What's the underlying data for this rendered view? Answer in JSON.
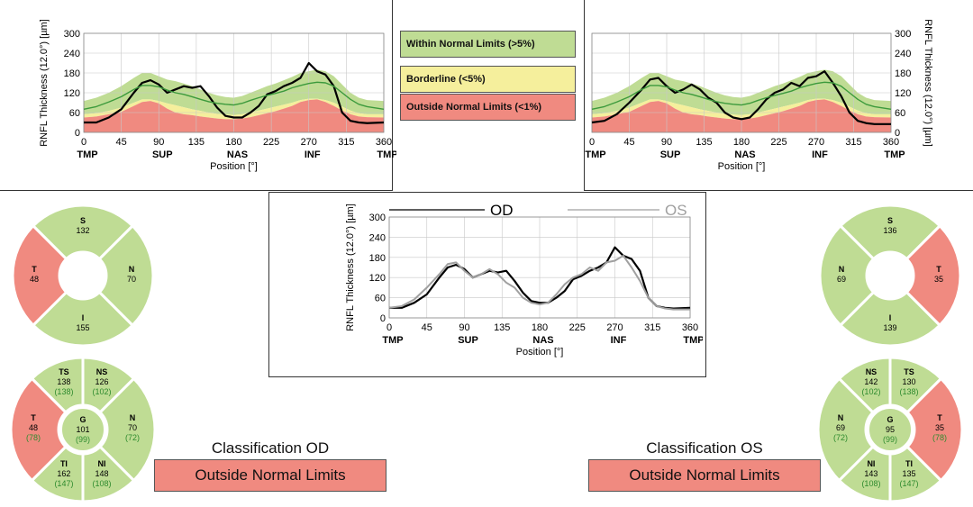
{
  "legend": {
    "within": "Within Normal Limits (>5%)",
    "borderline": "Borderline (<5%)",
    "outside": "Outside Normal Limits (<1%)"
  },
  "colors": {
    "within": "#bfdc94",
    "borderline": "#f5ef9c",
    "outside": "#f08a80",
    "od_line": "#000000",
    "os_line": "#a0a0a0",
    "normal_line": "#3c9a3c"
  },
  "classification": {
    "od_title": "Classification OD",
    "od_value": "Outside Normal Limits",
    "os_title": "Classification OS",
    "os_value": "Outside Normal Limits"
  },
  "chart_data": [
    {
      "type": "line",
      "eye": "OD",
      "ylabel": "RNFL Thickness (12.0°) [µm]",
      "xlabel": "Position [°]",
      "xlim": [
        0,
        360
      ],
      "ylim": [
        0,
        300
      ],
      "x_ticks": [
        0,
        45,
        90,
        135,
        180,
        225,
        270,
        315,
        360
      ],
      "y_ticks": [
        0,
        60,
        120,
        180,
        240,
        300
      ],
      "sector_labels": [
        "TMP",
        "SUP",
        "NAS",
        "INF",
        "TMP"
      ],
      "sector_positions": [
        0,
        90,
        180,
        270,
        360
      ],
      "grid": true,
      "x": [
        0,
        15,
        30,
        45,
        60,
        70,
        80,
        90,
        100,
        110,
        120,
        130,
        140,
        150,
        160,
        170,
        180,
        190,
        200,
        210,
        220,
        230,
        240,
        250,
        260,
        270,
        280,
        290,
        300,
        310,
        320,
        330,
        340,
        360
      ],
      "series": [
        {
          "values": [
            30,
            30,
            45,
            70,
            120,
            150,
            158,
            145,
            120,
            130,
            140,
            135,
            140,
            110,
            75,
            50,
            45,
            45,
            60,
            80,
            115,
            125,
            140,
            150,
            165,
            210,
            185,
            175,
            140,
            60,
            35,
            30,
            28,
            30
          ]
        },
        {
          "values": [
            70,
            78,
            92,
            108,
            130,
            142,
            142,
            138,
            128,
            120,
            115,
            108,
            100,
            93,
            88,
            85,
            83,
            88,
            97,
            105,
            112,
            118,
            125,
            135,
            142,
            148,
            152,
            150,
            140,
            120,
            100,
            85,
            78,
            70
          ]
        }
      ],
      "bands": {
        "within_upper": [
          95,
          105,
          120,
          140,
          165,
          180,
          180,
          170,
          160,
          155,
          148,
          140,
          130,
          120,
          112,
          107,
          105,
          110,
          120,
          130,
          140,
          148,
          158,
          168,
          180,
          185,
          190,
          185,
          170,
          145,
          120,
          105,
          98,
          95
        ],
        "borderline_upper": [
          55,
          58,
          65,
          75,
          90,
          100,
          100,
          95,
          88,
          82,
          76,
          70,
          65,
          60,
          56,
          54,
          53,
          55,
          60,
          66,
          72,
          78,
          84,
          90,
          98,
          102,
          102,
          98,
          90,
          78,
          66,
          58,
          55,
          55
        ],
        "outside_upper": [
          45,
          48,
          55,
          62,
          80,
          92,
          95,
          88,
          72,
          60,
          55,
          52,
          48,
          45,
          42,
          40,
          40,
          42,
          46,
          52,
          58,
          64,
          72,
          80,
          92,
          98,
          100,
          92,
          80,
          66,
          55,
          48,
          46,
          45
        ]
      }
    },
    {
      "type": "line",
      "eye": "OS",
      "ylabel": "RNFL Thickness (12.0°) [µm]",
      "xlabel": "Position [°]",
      "xlim": [
        0,
        360
      ],
      "ylim": [
        0,
        300
      ],
      "x_ticks": [
        0,
        45,
        90,
        135,
        180,
        225,
        270,
        315,
        360
      ],
      "y_ticks": [
        0,
        60,
        120,
        180,
        240,
        300
      ],
      "sector_labels": [
        "TMP",
        "SUP",
        "NAS",
        "INF",
        "TMP"
      ],
      "sector_positions": [
        0,
        90,
        180,
        270,
        360
      ],
      "grid": true,
      "x": [
        0,
        15,
        30,
        45,
        60,
        70,
        80,
        90,
        100,
        110,
        120,
        130,
        140,
        150,
        160,
        170,
        180,
        190,
        200,
        210,
        220,
        230,
        240,
        250,
        260,
        270,
        280,
        290,
        300,
        310,
        320,
        330,
        340,
        360
      ],
      "series": [
        {
          "values": [
            30,
            35,
            55,
            90,
            130,
            160,
            165,
            140,
            120,
            130,
            145,
            130,
            105,
            90,
            60,
            45,
            40,
            45,
            70,
            100,
            120,
            130,
            150,
            140,
            165,
            170,
            185,
            150,
            110,
            60,
            35,
            28,
            25,
            25
          ]
        },
        {
          "values": [
            70,
            78,
            92,
            108,
            130,
            142,
            142,
            138,
            128,
            120,
            115,
            108,
            100,
            93,
            88,
            85,
            83,
            88,
            97,
            105,
            112,
            118,
            125,
            135,
            142,
            148,
            152,
            150,
            140,
            120,
            100,
            85,
            78,
            70
          ]
        }
      ],
      "bands": {
        "within_upper": [
          95,
          105,
          120,
          140,
          165,
          180,
          180,
          170,
          160,
          155,
          148,
          140,
          130,
          120,
          112,
          107,
          105,
          110,
          120,
          130,
          140,
          148,
          158,
          168,
          180,
          185,
          190,
          185,
          170,
          145,
          120,
          105,
          98,
          95
        ],
        "borderline_upper": [
          55,
          58,
          65,
          75,
          90,
          100,
          100,
          95,
          88,
          82,
          76,
          70,
          65,
          60,
          56,
          54,
          53,
          55,
          60,
          66,
          72,
          78,
          84,
          90,
          98,
          102,
          102,
          98,
          90,
          78,
          66,
          58,
          55,
          55
        ],
        "outside_upper": [
          45,
          48,
          55,
          62,
          80,
          92,
          95,
          88,
          72,
          60,
          55,
          52,
          48,
          45,
          42,
          40,
          40,
          42,
          46,
          52,
          58,
          64,
          72,
          80,
          92,
          98,
          100,
          92,
          80,
          66,
          55,
          48,
          46,
          45
        ]
      }
    },
    {
      "type": "line",
      "eye": "OD/OS",
      "ylabel": "RNFL Thickness (12.0°) [µm]",
      "xlabel": "Position [°]",
      "xlim": [
        0,
        360
      ],
      "ylim": [
        0,
        300
      ],
      "x_ticks": [
        0,
        45,
        90,
        135,
        180,
        225,
        270,
        315,
        360
      ],
      "y_ticks": [
        0,
        60,
        120,
        180,
        240,
        300
      ],
      "sector_labels": [
        "TMP",
        "SUP",
        "NAS",
        "INF",
        "TMP"
      ],
      "sector_positions": [
        0,
        90,
        180,
        270,
        360
      ],
      "grid": true,
      "x": [
        0,
        15,
        30,
        45,
        60,
        70,
        80,
        90,
        100,
        110,
        120,
        130,
        140,
        150,
        160,
        170,
        180,
        190,
        200,
        210,
        220,
        230,
        240,
        250,
        260,
        270,
        280,
        290,
        300,
        310,
        320,
        330,
        340,
        360
      ],
      "series": [
        {
          "name": "OD",
          "values": [
            30,
            30,
            45,
            70,
            120,
            150,
            158,
            145,
            120,
            130,
            140,
            135,
            140,
            110,
            75,
            50,
            45,
            45,
            60,
            80,
            115,
            125,
            140,
            150,
            165,
            210,
            185,
            175,
            140,
            60,
            35,
            30,
            28,
            30
          ]
        },
        {
          "name": "OS",
          "values": [
            30,
            35,
            55,
            90,
            130,
            160,
            165,
            140,
            120,
            130,
            145,
            130,
            105,
            90,
            60,
            45,
            40,
            45,
            70,
            100,
            120,
            130,
            150,
            140,
            165,
            170,
            185,
            150,
            110,
            60,
            35,
            28,
            25,
            25
          ]
        }
      ]
    }
  ],
  "sectors_od_quadrant": {
    "s": {
      "label": "S",
      "value": "132",
      "status": "within"
    },
    "n": {
      "label": "N",
      "value": "70",
      "status": "within"
    },
    "i": {
      "label": "I",
      "value": "155",
      "status": "within"
    },
    "t": {
      "label": "T",
      "value": "48",
      "status": "outside"
    }
  },
  "sectors_os_quadrant": {
    "s": {
      "label": "S",
      "value": "136",
      "status": "within"
    },
    "n": {
      "label": "N",
      "value": "69",
      "status": "within"
    },
    "i": {
      "label": "I",
      "value": "139",
      "status": "within"
    },
    "t": {
      "label": "T",
      "value": "35",
      "status": "outside"
    }
  },
  "sectors_od_six": {
    "ts": {
      "label": "TS",
      "value": "138",
      "normal": "(138)",
      "status": "within"
    },
    "ns": {
      "label": "NS",
      "value": "126",
      "normal": "(102)",
      "status": "within"
    },
    "n": {
      "label": "N",
      "value": "70",
      "normal": "(72)",
      "status": "within"
    },
    "ni": {
      "label": "NI",
      "value": "148",
      "normal": "(108)",
      "status": "within"
    },
    "ti": {
      "label": "TI",
      "value": "162",
      "normal": "(147)",
      "status": "within"
    },
    "t": {
      "label": "T",
      "value": "48",
      "normal": "(78)",
      "status": "outside"
    },
    "g": {
      "label": "G",
      "value": "101",
      "normal": "(99)",
      "status": "within"
    }
  },
  "sectors_os_six": {
    "ns": {
      "label": "NS",
      "value": "142",
      "normal": "(102)",
      "status": "within"
    },
    "ts": {
      "label": "TS",
      "value": "130",
      "normal": "(138)",
      "status": "within"
    },
    "t": {
      "label": "T",
      "value": "35",
      "normal": "(78)",
      "status": "outside"
    },
    "ti": {
      "label": "TI",
      "value": "135",
      "normal": "(147)",
      "status": "within"
    },
    "ni": {
      "label": "NI",
      "value": "143",
      "normal": "(108)",
      "status": "within"
    },
    "n": {
      "label": "N",
      "value": "69",
      "normal": "(72)",
      "status": "within"
    },
    "g": {
      "label": "G",
      "value": "95",
      "normal": "(99)",
      "status": "within"
    }
  }
}
